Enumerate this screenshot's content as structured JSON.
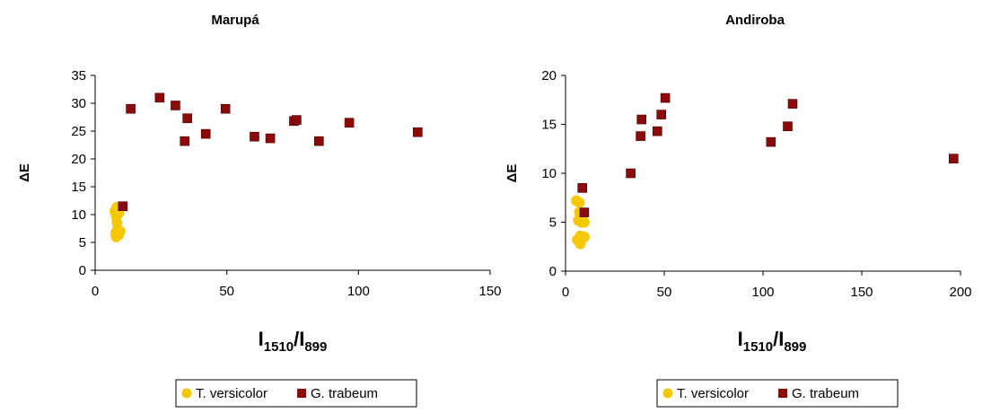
{
  "chart_data": [
    {
      "type": "scatter",
      "title": "Marupá",
      "ylabel": "ΔE",
      "xlabel": {
        "main": "I",
        "sub1": "1510",
        "sep": "/I",
        "sub2": "899"
      },
      "xlim": [
        0,
        150
      ],
      "ylim": [
        0,
        35
      ],
      "xticks": [
        0,
        50,
        100,
        150
      ],
      "yticks": [
        0,
        5,
        10,
        15,
        20,
        25,
        30,
        35
      ],
      "grid": false,
      "legend_position": "bottom",
      "series": [
        {
          "name": "T. versicolor",
          "color": "#f5c800",
          "marker": "circle",
          "points": [
            [
              7.5,
              10.6
            ],
            [
              8.2,
              11.3
            ],
            [
              8.0,
              9.7
            ],
            [
              8.3,
              8.5
            ],
            [
              9.0,
              10.3
            ],
            [
              8.5,
              7.3
            ],
            [
              7.8,
              6.7
            ],
            [
              9.5,
              7.0
            ],
            [
              8.0,
              6.0
            ],
            [
              8.8,
              6.3
            ]
          ]
        },
        {
          "name": "G. trabeum",
          "color": "#8b0a0a",
          "marker": "square",
          "points": [
            [
              10.5,
              11.5
            ],
            [
              13.5,
              29.0
            ],
            [
              24.5,
              31.0
            ],
            [
              30.5,
              29.6
            ],
            [
              35.0,
              27.3
            ],
            [
              34.0,
              23.2
            ],
            [
              42.0,
              24.5
            ],
            [
              49.5,
              29.0
            ],
            [
              60.5,
              24.0
            ],
            [
              66.5,
              23.7
            ],
            [
              75.5,
              26.8
            ],
            [
              76.5,
              27.0
            ],
            [
              85.0,
              23.2
            ],
            [
              96.5,
              26.5
            ],
            [
              122.5,
              24.8
            ]
          ]
        }
      ]
    },
    {
      "type": "scatter",
      "title": "Andiroba",
      "ylabel": "ΔE",
      "xlabel": {
        "main": "I",
        "sub1": "1510",
        "sep": "/I",
        "sub2": "899"
      },
      "xlim": [
        0,
        200
      ],
      "ylim": [
        0,
        20
      ],
      "xticks": [
        0,
        50,
        100,
        150,
        200
      ],
      "yticks": [
        0,
        5,
        10,
        15,
        20
      ],
      "grid": false,
      "legend_position": "bottom",
      "series": [
        {
          "name": "T. versicolor",
          "color": "#f5c800",
          "marker": "circle",
          "points": [
            [
              5.5,
              7.2
            ],
            [
              7.0,
              7.0
            ],
            [
              7.0,
              6.0
            ],
            [
              8.0,
              5.0
            ],
            [
              6.5,
              5.2
            ],
            [
              9.5,
              5.0
            ],
            [
              7.5,
              3.6
            ],
            [
              9.5,
              3.5
            ],
            [
              6.0,
              3.2
            ],
            [
              7.5,
              2.8
            ]
          ]
        },
        {
          "name": "G. trabeum",
          "color": "#8b0a0a",
          "marker": "square",
          "points": [
            [
              8.5,
              8.5
            ],
            [
              9.5,
              6.0
            ],
            [
              33.0,
              10.0
            ],
            [
              38.0,
              13.8
            ],
            [
              38.5,
              15.5
            ],
            [
              46.5,
              14.3
            ],
            [
              48.5,
              16.0
            ],
            [
              50.5,
              17.7
            ],
            [
              104.0,
              13.2
            ],
            [
              112.5,
              14.8
            ],
            [
              115.0,
              17.1
            ],
            [
              196.5,
              11.5
            ]
          ]
        }
      ]
    }
  ]
}
